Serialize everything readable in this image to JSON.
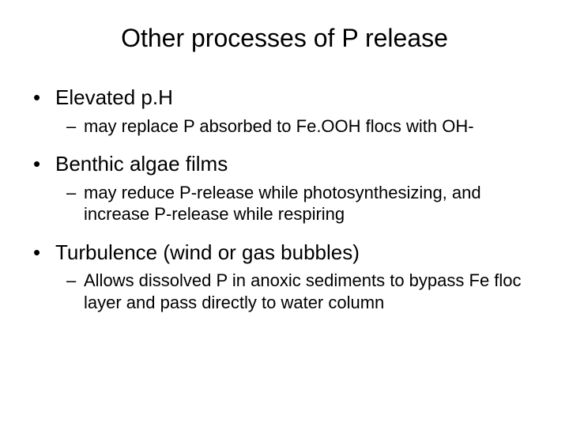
{
  "background_color": "#ffffff",
  "text_color": "#000000",
  "font_family": "Arial",
  "title": {
    "text": "Other processes of P release",
    "fontsize": 32,
    "align": "center"
  },
  "bullets": {
    "level1_marker": "•",
    "level2_marker": "–",
    "level1_fontsize": 26,
    "level2_fontsize": 22,
    "items": [
      {
        "text": "Elevated p.H",
        "sub": [
          "may replace P absorbed to Fe.OOH flocs with OH-"
        ]
      },
      {
        "text": "Benthic algae films",
        "sub": [
          "may reduce P-release while photosynthesizing, and increase P-release while respiring"
        ]
      },
      {
        "text": "Turbulence (wind or gas bubbles)",
        "sub": [
          "Allows dissolved P in anoxic sediments to bypass Fe floc layer and pass directly to water column"
        ]
      }
    ]
  }
}
